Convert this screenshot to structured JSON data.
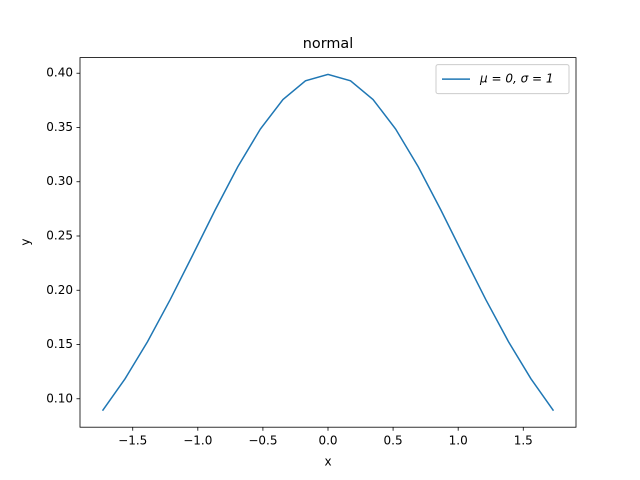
{
  "chart_data": {
    "type": "line",
    "title": "normal",
    "x_label": "x",
    "y_label": "y",
    "x": [
      -1.732,
      -1.559,
      -1.386,
      -1.212,
      -1.039,
      -0.866,
      -0.693,
      -0.52,
      -0.346,
      -0.173,
      0,
      0.173,
      0.346,
      0.52,
      0.693,
      0.866,
      1.039,
      1.212,
      1.386,
      1.559,
      1.732
    ],
    "series": [
      {
        "name": "μ = 0,  σ = 1",
        "color": "#1f77b4",
        "values": [
          0.089,
          0.1184,
          0.1527,
          0.1914,
          0.2325,
          0.2742,
          0.3138,
          0.3485,
          0.3758,
          0.393,
          0.3989,
          0.393,
          0.3758,
          0.3485,
          0.3138,
          0.2742,
          0.2325,
          0.1914,
          0.1527,
          0.1184,
          0.089
        ]
      }
    ],
    "xlim": [
      -1.905,
      1.905
    ],
    "ylim": [
      0.0738,
      0.4144
    ],
    "xticks": [
      {
        "value": -1.5,
        "label": "−1.5"
      },
      {
        "value": -1.0,
        "label": "−1.0"
      },
      {
        "value": -0.5,
        "label": "−0.5"
      },
      {
        "value": 0,
        "label": "0.0"
      },
      0.5,
      {
        "value": 1.0,
        "label": "1.0"
      },
      1.5
    ],
    "yticks": [
      {
        "value": 0.1,
        "label": "0.10"
      },
      0.15,
      {
        "value": 0.2,
        "label": "0.20"
      },
      0.25,
      {
        "value": 0.3,
        "label": "0.30"
      },
      0.35,
      {
        "value": 0.4,
        "label": "0.40"
      }
    ],
    "legend": "upper right",
    "grid": false
  }
}
